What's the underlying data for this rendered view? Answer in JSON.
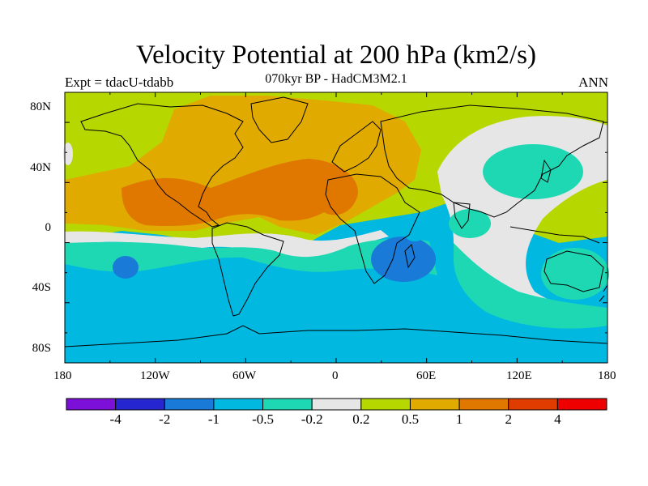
{
  "title": "Velocity Potential at 200 hPa (km2/s)",
  "subtitle": "070kyr BP - HadCM3M2.1",
  "left_label": "Expt = tdacU-tdabb",
  "right_label": "ANN",
  "x_ticks": [
    "180",
    "120W",
    "60W",
    "0",
    "60E",
    "120E",
    "180"
  ],
  "y_ticks": [
    "80N",
    "40N",
    "0",
    "40S",
    "80S"
  ],
  "colorbar": {
    "labels": [
      "-4",
      "-2",
      "-1",
      "-0.5",
      "-0.2",
      "0.2",
      "0.5",
      "1",
      "2",
      "4"
    ],
    "colors": [
      "#7c0fd8",
      "#2626d0",
      "#1a7ad8",
      "#00b8e0",
      "#1ed8b4",
      "#e6e6e6",
      "#b6d800",
      "#e0aa00",
      "#e07800",
      "#e03c00",
      "#ee0000"
    ]
  },
  "palette": {
    "blue": "#00b8e0",
    "dark_blue": "#1a7ad8",
    "teal": "#1ed8b4",
    "grey": "#e6e6e6",
    "lime": "#b6d800",
    "orange_light": "#e0aa00",
    "orange": "#e07800"
  }
}
